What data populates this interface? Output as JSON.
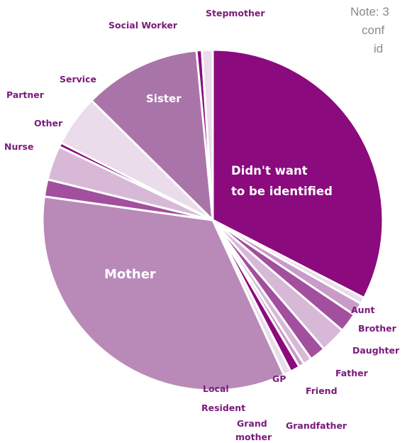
{
  "note": {
    "line1": "Note: 3",
    "line2": "conf",
    "line3": "id"
  },
  "chart_data": {
    "type": "pie",
    "title": "",
    "slices": [
      {
        "label": "Didn't want to be identified",
        "value": 32.0,
        "color": "#8b0a7d"
      },
      {
        "label": "Aunt",
        "value": 0.6,
        "color": "#eadcea"
      },
      {
        "label": "Brother",
        "value": 1.2,
        "color": "#c89bc8"
      },
      {
        "label": "Daughter",
        "value": 1.8,
        "color": "#a24f9e"
      },
      {
        "label": "Father",
        "value": 2.4,
        "color": "#d7b9d7"
      },
      {
        "label": "Friend",
        "value": 1.5,
        "color": "#a24f9e"
      },
      {
        "label": "GP",
        "value": 0.8,
        "color": "#d7b9d7"
      },
      {
        "label": "Grandfather",
        "value": 0.5,
        "color": "#c89bc8"
      },
      {
        "label": "Grand mother",
        "value": 0.9,
        "color": "#8b0a7d"
      },
      {
        "label": "Local Resident",
        "value": 0.7,
        "color": "#eadcea"
      },
      {
        "label": "Mother",
        "value": 33.5,
        "color": "#b98ab8"
      },
      {
        "label": "Nurse",
        "value": 1.6,
        "color": "#a24f9e"
      },
      {
        "label": "Other",
        "value": 3.2,
        "color": "#d7b9d7"
      },
      {
        "label": "Partner",
        "value": 0.4,
        "color": "#8b0a7d"
      },
      {
        "label": "Service",
        "value": 4.8,
        "color": "#eadcea"
      },
      {
        "label": "Sister",
        "value": 10.9,
        "color": "#a975a8"
      },
      {
        "label": "Social Worker",
        "value": 0.5,
        "color": "#8b0a7d"
      },
      {
        "label": "Stepmother",
        "value": 1.0,
        "color": "#eadcea"
      }
    ],
    "inside_labels": [
      {
        "lines": [
          "Didn't want",
          "to be identified"
        ]
      },
      {
        "lines": [
          "Mother"
        ]
      },
      {
        "lines": [
          "Sister"
        ]
      }
    ],
    "outside_labels": [
      {
        "text": "Social Worker"
      },
      {
        "text": "Stepmother"
      },
      {
        "text": "Service"
      },
      {
        "text": "Partner"
      },
      {
        "text": "Other"
      },
      {
        "text": "Nurse"
      },
      {
        "text": "Aunt"
      },
      {
        "text": "Brother"
      },
      {
        "text": "Daughter"
      },
      {
        "text": "Father"
      },
      {
        "text": "GP"
      },
      {
        "text": "Friend"
      },
      {
        "text": "Local"
      },
      {
        "text": "Resident"
      },
      {
        "text": "Grand"
      },
      {
        "text": "mother"
      },
      {
        "text": "Grandfather"
      }
    ]
  }
}
